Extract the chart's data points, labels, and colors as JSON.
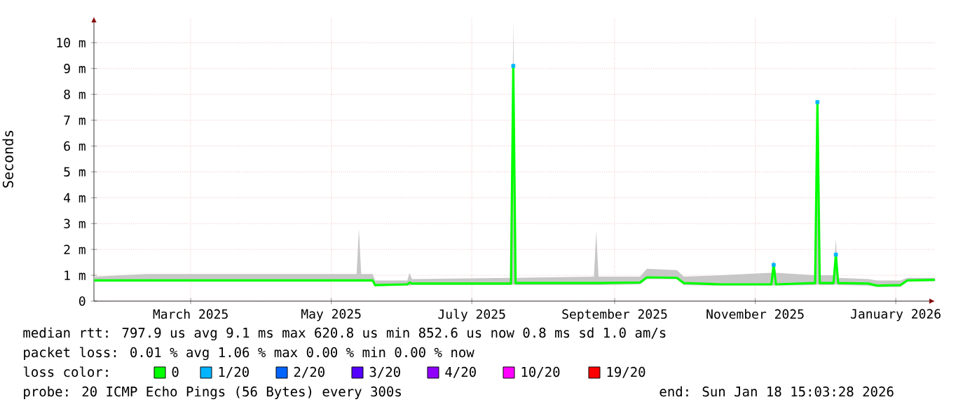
{
  "chart_data": {
    "type": "line",
    "ylabel": "Seconds",
    "xlim": [
      "2025-01-18",
      "2026-01-18"
    ],
    "xticks": [
      {
        "value": "2025-03-01",
        "label": "March 2025"
      },
      {
        "value": "2025-05-01",
        "label": "May 2025"
      },
      {
        "value": "2025-07-01",
        "label": "July 2025"
      },
      {
        "value": "2025-09-01",
        "label": "September 2025"
      },
      {
        "value": "2025-11-01",
        "label": "November 2025"
      },
      {
        "value": "2026-01-01",
        "label": "January 2026"
      }
    ],
    "ylim": [
      0,
      11
    ],
    "yticks": [
      0,
      {
        "value": 1,
        "label": "1 m"
      },
      {
        "value": 2,
        "label": "2 m"
      },
      {
        "value": 3,
        "label": "3 m"
      },
      {
        "value": 4,
        "label": "4 m"
      },
      {
        "value": 5,
        "label": "5 m"
      },
      {
        "value": 6,
        "label": "6 m"
      },
      {
        "value": 7,
        "label": "7 m"
      },
      {
        "value": 8,
        "label": "8 m"
      },
      {
        "value": 9,
        "label": "9 m"
      },
      {
        "value": 10,
        "label": "10 m"
      }
    ],
    "grid": true,
    "legend": "bottom",
    "legend_title": "loss color:",
    "line_style": "solid",
    "series": [
      {
        "name": "0",
        "color": "#00ff00",
        "x": [
          "2025-01-18",
          "2025-02-10",
          "2025-04-15",
          "2025-05-12",
          "2025-05-13",
          "2025-05-14",
          "2025-05-19",
          "2025-05-20",
          "2025-06-03",
          "2025-06-04",
          "2025-06-05",
          "2025-07-18",
          "2025-07-19",
          "2025-07-20",
          "2025-08-23",
          "2025-08-24",
          "2025-08-25",
          "2025-09-12",
          "2025-09-15",
          "2025-09-28",
          "2025-10-01",
          "2025-10-17",
          "2025-11-08",
          "2025-11-09",
          "2025-11-10",
          "2025-11-27",
          "2025-11-28",
          "2025-11-29",
          "2025-12-05",
          "2025-12-06",
          "2025-12-07",
          "2025-12-20",
          "2025-12-24",
          "2026-01-03",
          "2026-01-06",
          "2026-01-18"
        ],
        "values": [
          0.8,
          0.8,
          0.8,
          0.8,
          0.8,
          0.8,
          0.8,
          0.62,
          0.65,
          0.72,
          0.68,
          0.68,
          9.1,
          0.7,
          0.7,
          0.7,
          0.7,
          0.72,
          0.92,
          0.9,
          0.7,
          0.65,
          0.65,
          1.4,
          0.65,
          0.7,
          7.7,
          0.7,
          0.7,
          1.8,
          0.7,
          0.68,
          0.6,
          0.62,
          0.8,
          0.82
        ],
        "lower": [
          0.75,
          0.75,
          0.75,
          0.75,
          0.75,
          0.75,
          0.75,
          0.58,
          0.6,
          0.6,
          0.62,
          0.62,
          0.65,
          0.62,
          0.62,
          0.62,
          0.62,
          0.65,
          0.85,
          0.85,
          0.62,
          0.6,
          0.6,
          0.6,
          0.6,
          0.62,
          0.65,
          0.62,
          0.62,
          0.65,
          0.62,
          0.6,
          0.55,
          0.55,
          0.75,
          0.78
        ],
        "upper": [
          0.95,
          1.05,
          1.05,
          1.05,
          2.8,
          1.05,
          1.05,
          0.8,
          0.8,
          1.1,
          0.85,
          0.9,
          10.9,
          0.9,
          0.95,
          2.7,
          0.95,
          0.95,
          1.25,
          1.2,
          0.95,
          1.0,
          1.1,
          1.6,
          1.1,
          1.0,
          8.0,
          1.0,
          1.0,
          2.4,
          0.9,
          0.85,
          0.8,
          0.8,
          0.9,
          0.9
        ]
      },
      {
        "name": "1/20",
        "type": "scatter",
        "marker": "square",
        "color": "#00b4ff",
        "x": [
          "2025-07-19",
          "2025-11-09",
          "2025-11-28",
          "2025-12-06"
        ],
        "values": [
          9.1,
          1.4,
          7.7,
          1.8
        ]
      },
      {
        "name": "2/20",
        "type": "scatter",
        "color": "#0064ff"
      },
      {
        "name": "3/20",
        "type": "scatter",
        "color": "#5500ff"
      },
      {
        "name": "4/20",
        "type": "scatter",
        "color": "#9000ff"
      },
      {
        "name": "10/20",
        "type": "scatter",
        "color": "#ff00ff"
      },
      {
        "name": "19/20",
        "type": "scatter",
        "color": "#ff0000"
      }
    ],
    "annotations": [
      "median rtt:  797.9 us avg  9.1 ms max  620.8 us min  852.6 us now  0.8 ms sd  1.0   am/s",
      "packet loss: 0.01 % avg  1.06 % max  0.00 % min  0.00 % now",
      "probe:       20 ICMP Echo Pings (56 Bytes) every 300s",
      "end: Sun Jan 18 15:03:28 2026"
    ]
  }
}
